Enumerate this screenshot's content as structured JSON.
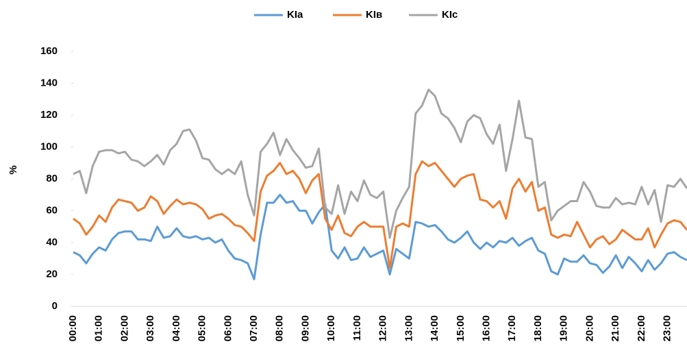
{
  "chart_data": {
    "type": "line",
    "y_label": "%",
    "categories": [
      "00:00",
      null,
      null,
      null,
      "01:00",
      null,
      null,
      null,
      "02:00",
      null,
      null,
      null,
      "03:00",
      null,
      null,
      null,
      "04:00",
      null,
      null,
      null,
      "05:00",
      null,
      null,
      null,
      "06:00",
      null,
      null,
      null,
      "07:00",
      null,
      null,
      null,
      "08:00",
      null,
      null,
      null,
      "09:00",
      null,
      null,
      null,
      "10:00",
      null,
      null,
      null,
      "11:00",
      null,
      null,
      null,
      "12:00",
      null,
      null,
      null,
      "13:00",
      null,
      null,
      null,
      "14:00",
      null,
      null,
      null,
      "15:00",
      null,
      null,
      null,
      "16:00",
      null,
      null,
      null,
      "17:00",
      null,
      null,
      null,
      "18:00",
      null,
      null,
      null,
      "19:00",
      null,
      null,
      null,
      "20:00",
      null,
      null,
      null,
      "21:00",
      null,
      null,
      null,
      "22:00",
      null,
      null,
      null,
      "23:00",
      null,
      null,
      null
    ],
    "series": [
      {
        "name": "KIa",
        "color": "#5b9bd5",
        "values": [
          34,
          32,
          27,
          33,
          37,
          35,
          42,
          46,
          47,
          47,
          42,
          42,
          41,
          50,
          43,
          44,
          49,
          44,
          43,
          44,
          42,
          43,
          40,
          42,
          35,
          30,
          29,
          27,
          17,
          45,
          65,
          65,
          70,
          65,
          66,
          60,
          60,
          52,
          59,
          64,
          35,
          30,
          37,
          29,
          30,
          37,
          31,
          33,
          35,
          20,
          36,
          33,
          30,
          53,
          52,
          50,
          51,
          47,
          42,
          40,
          43,
          47,
          40,
          36,
          40,
          37,
          41,
          40,
          43,
          38,
          41,
          43,
          35,
          33,
          22,
          20,
          30,
          28,
          28,
          32,
          27,
          26,
          21,
          25,
          32,
          24,
          31,
          27,
          22,
          29,
          23,
          27,
          33,
          34,
          31,
          29
        ]
      },
      {
        "name": "KIв",
        "color": "#ed7d31",
        "values": [
          55,
          52,
          45,
          50,
          57,
          53,
          62,
          67,
          66,
          65,
          60,
          62,
          69,
          66,
          58,
          63,
          67,
          64,
          65,
          64,
          61,
          55,
          57,
          58,
          55,
          51,
          50,
          46,
          41,
          72,
          82,
          85,
          90,
          83,
          85,
          80,
          71,
          79,
          83,
          55,
          48,
          57,
          46,
          44,
          50,
          53,
          50,
          50,
          50,
          24,
          50,
          52,
          50,
          83,
          91,
          88,
          90,
          85,
          80,
          75,
          80,
          82,
          83,
          67,
          66,
          62,
          66,
          55,
          74,
          80,
          72,
          78,
          60,
          62,
          45,
          43,
          45,
          44,
          53,
          45,
          37,
          42,
          44,
          39,
          42,
          48,
          45,
          42,
          42,
          49,
          37,
          45,
          52,
          54,
          53,
          48
        ]
      },
      {
        "name": "KIc",
        "color": "#a5a5a5",
        "values": [
          83,
          85,
          71,
          88,
          97,
          98,
          98,
          96,
          97,
          92,
          91,
          88,
          91,
          95,
          89,
          98,
          102,
          110,
          111,
          104,
          93,
          92,
          86,
          83,
          86,
          83,
          91,
          70,
          57,
          97,
          102,
          109,
          95,
          105,
          98,
          93,
          87,
          88,
          99,
          62,
          58,
          76,
          58,
          72,
          66,
          79,
          70,
          68,
          72,
          43,
          60,
          68,
          75,
          121,
          126,
          136,
          132,
          121,
          118,
          112,
          103,
          116,
          120,
          118,
          108,
          102,
          114,
          85,
          105,
          129,
          106,
          105,
          75,
          78,
          54,
          60,
          63,
          66,
          66,
          78,
          72,
          63,
          62,
          62,
          68,
          64,
          65,
          64,
          75,
          64,
          73,
          53,
          76,
          75,
          80,
          74
        ]
      }
    ],
    "ylim": [
      0,
      160
    ],
    "yticks": [
      0,
      20,
      40,
      60,
      80,
      100,
      120,
      140,
      160
    ],
    "grid": false,
    "legend": "top"
  }
}
